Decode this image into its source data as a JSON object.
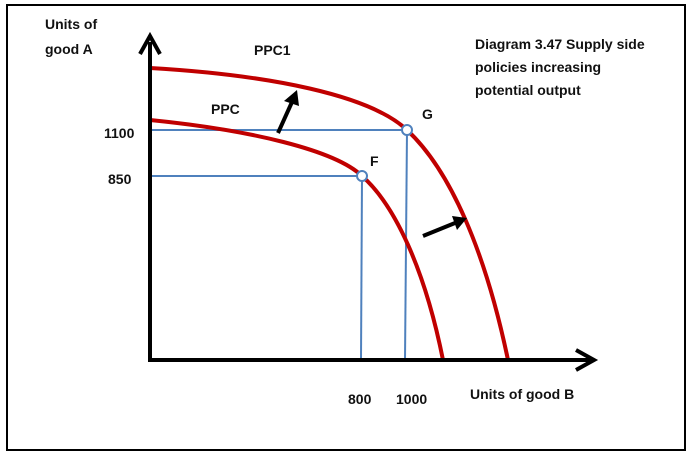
{
  "axes": {
    "y_label_line1": "Units of",
    "y_label_line2": "good A",
    "x_label": "Units of good B"
  },
  "title": {
    "line1": "Diagram 3.47 Supply side",
    "line2": "policies increasing",
    "line3": "potential output"
  },
  "curves": {
    "ppc_label": "PPC",
    "ppc1_label": "PPC1",
    "curve_color": "#c00000"
  },
  "points": {
    "F": {
      "label": "F",
      "good_b": "800",
      "good_a": "850"
    },
    "G": {
      "label": "G",
      "good_b": "1000",
      "good_a": "1100"
    }
  },
  "guide_color": "#4f81bd",
  "arrow_color": "#000000"
}
